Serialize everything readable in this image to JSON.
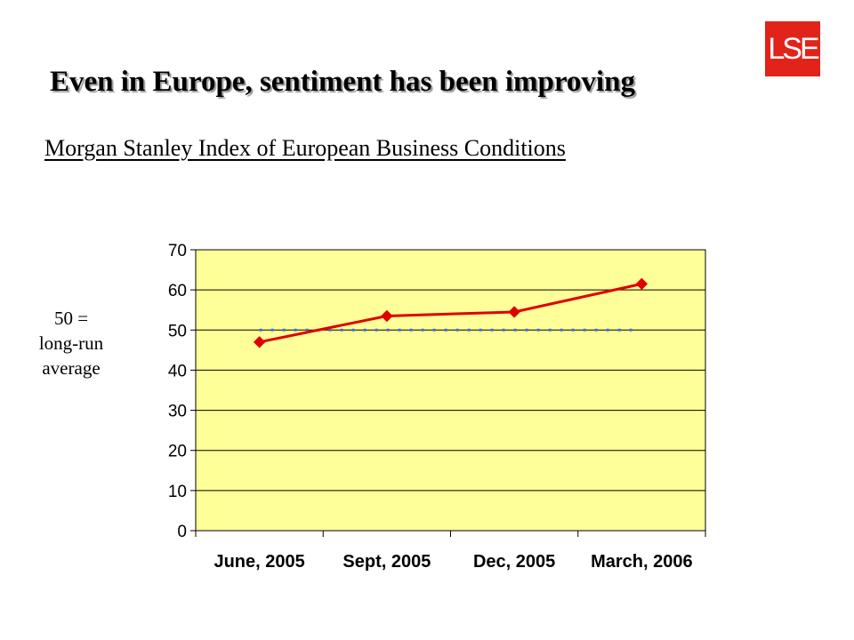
{
  "logo": {
    "text": "LSE",
    "color": "#e2231a"
  },
  "heading": "Even in Europe, sentiment has been improving",
  "subheading": "Morgan Stanley Index of European Business Conditions",
  "note": {
    "line1": "50 =",
    "line2": "long-run",
    "line3": "average"
  },
  "chart_data": {
    "type": "line",
    "categories": [
      "June, 2005",
      "Sept, 2005",
      "Dec, 2005",
      "March, 2006"
    ],
    "series": [
      {
        "values": [
          47,
          53.5,
          54.5,
          61.5
        ],
        "color": "#e00000",
        "marker": "diamond"
      }
    ],
    "reference_line": {
      "value": 50,
      "color": "#3b6fe0",
      "style": "dotted"
    },
    "ylim": [
      0,
      70
    ],
    "yticks": [
      0,
      10,
      20,
      30,
      40,
      50,
      60,
      70
    ],
    "grid": true,
    "plot_background": "#ffff99",
    "title": "",
    "xlabel": "",
    "ylabel": ""
  }
}
